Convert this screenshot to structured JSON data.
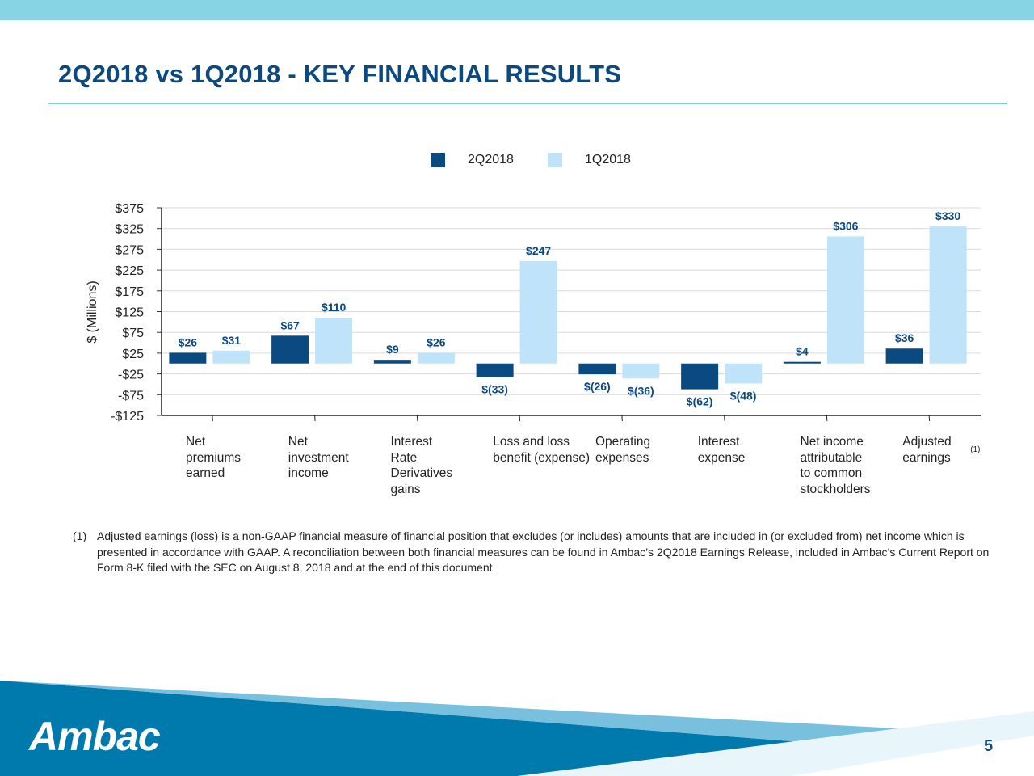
{
  "header": {
    "title": "2Q2018 vs 1Q2018 - KEY FINANCIAL RESULTS"
  },
  "legend": [
    {
      "label": "2Q2018",
      "color": "#0b4a80"
    },
    {
      "label": "1Q2018",
      "color": "#bfe4fa"
    }
  ],
  "chart_data": {
    "type": "bar",
    "ylabel": "$ (Millions)",
    "ylim": [
      -125,
      375
    ],
    "yticks": [
      375,
      325,
      275,
      225,
      175,
      125,
      75,
      25,
      -25,
      -75,
      -125
    ],
    "ytick_labels": [
      "$375",
      "$325",
      "$275",
      "$225",
      "$175",
      "$125",
      "$75",
      "$25",
      "-$25",
      "-$75",
      "-$125"
    ],
    "grid": true,
    "legend_position": "top-center",
    "categories": [
      "Net\npremiums\nearned",
      "Net\ninvestment\nincome",
      "Interest\nRate\nDerivatives\ngains",
      "Loss and loss\nbenefit (expense)",
      "Operating\nexpenses",
      "Interest\nexpense",
      "Net income\nattributable\nto common\nstockholders",
      "Adjusted\nearnings"
    ],
    "category_superscripts": [
      "",
      "",
      "",
      "",
      "",
      "",
      "",
      "(1)"
    ],
    "series": [
      {
        "name": "2Q2018",
        "color": "#0b4a80",
        "values": [
          26,
          67,
          9,
          -33,
          -26,
          -62,
          4,
          36
        ],
        "labels": [
          "$26",
          "$67",
          "$9",
          "$(33)",
          "$(26)",
          "$(62)",
          "$4",
          "$36"
        ]
      },
      {
        "name": "1Q2018",
        "color": "#bfe4fa",
        "values": [
          31,
          110,
          26,
          247,
          -36,
          -48,
          306,
          330
        ],
        "labels": [
          "$31",
          "$110",
          "$26",
          "$247",
          "$(36)",
          "$(48)",
          "$306",
          "$330"
        ]
      }
    ]
  },
  "footnote": {
    "marker": "(1)",
    "text": "Adjusted earnings (loss) is a non-GAAP financial measure of financial position that excludes (or includes) amounts that are included in (or excluded from) net income which is presented in accordance with GAAP.  A reconciliation between both financial measures can be found in Ambac’s 2Q2018 Earnings Release, included in Ambac’s Current Report on Form 8-K filed with the SEC on August 8, 2018 and at the end of this document"
  },
  "footer": {
    "logo": "Ambac",
    "page_number": "5"
  },
  "colors": {
    "accent": "#0b4a80",
    "light": "#bfe4fa",
    "band_dark": "#0079ad",
    "band_light": "#31a8cf"
  }
}
